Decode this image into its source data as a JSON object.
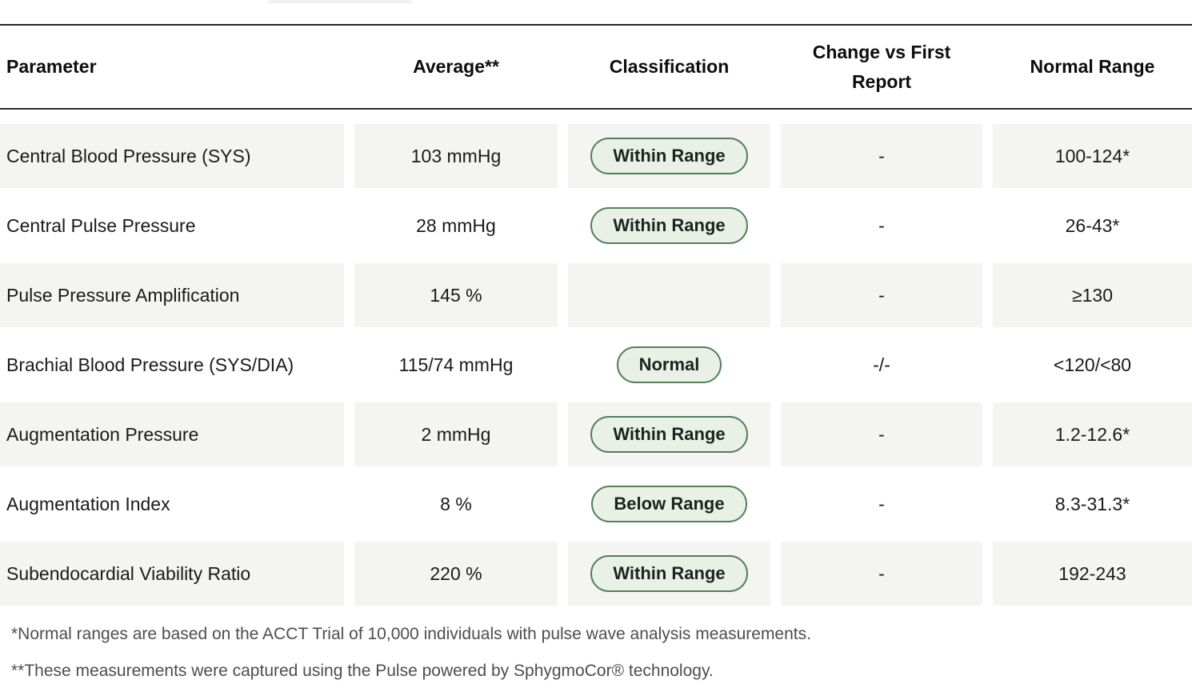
{
  "header": {
    "columns": [
      {
        "label": "Parameter"
      },
      {
        "label": "Average**"
      },
      {
        "label": "Classification"
      },
      {
        "label": "Change vs First Report"
      },
      {
        "label": "Normal Range"
      }
    ]
  },
  "rows": [
    {
      "parameter": "Central Blood Pressure (SYS)",
      "average": "103 mmHg",
      "classification": "Within Range",
      "change": "-",
      "normal_range": "100-124*"
    },
    {
      "parameter": "Central Pulse Pressure",
      "average": "28 mmHg",
      "classification": "Within Range",
      "change": "-",
      "normal_range": "26-43*"
    },
    {
      "parameter": "Pulse Pressure Amplification",
      "average": "145 %",
      "classification": "",
      "change": "-",
      "normal_range": "≥130"
    },
    {
      "parameter": "Brachial Blood Pressure (SYS/DIA)",
      "average": "115/74 mmHg",
      "classification": "Normal",
      "change": "-/-",
      "normal_range": "<120/<80"
    },
    {
      "parameter": "Augmentation Pressure",
      "average": "2 mmHg",
      "classification": "Within Range",
      "change": "-",
      "normal_range": "1.2-12.6*"
    },
    {
      "parameter": "Augmentation Index",
      "average": "8 %",
      "classification": "Below Range",
      "change": "-",
      "normal_range": "8.3-31.3*"
    },
    {
      "parameter": "Subendocardial Viability Ratio",
      "average": "220 %",
      "classification": "Within Range",
      "change": "-",
      "normal_range": "192-243"
    }
  ],
  "footnotes": [
    "*Normal ranges are based on the ACCT Trial of 10,000 individuals with pulse wave analysis measurements.",
    "**These measurements were captured using the Pulse powered by SphygmoCor® technology."
  ],
  "colors": {
    "badge_background": "#e9f1e6",
    "badge_border": "#53805a",
    "row_stripe": "#f4f4f2",
    "header_rule": "#2b2b2b",
    "footnote_text": "#4d4d4d"
  }
}
